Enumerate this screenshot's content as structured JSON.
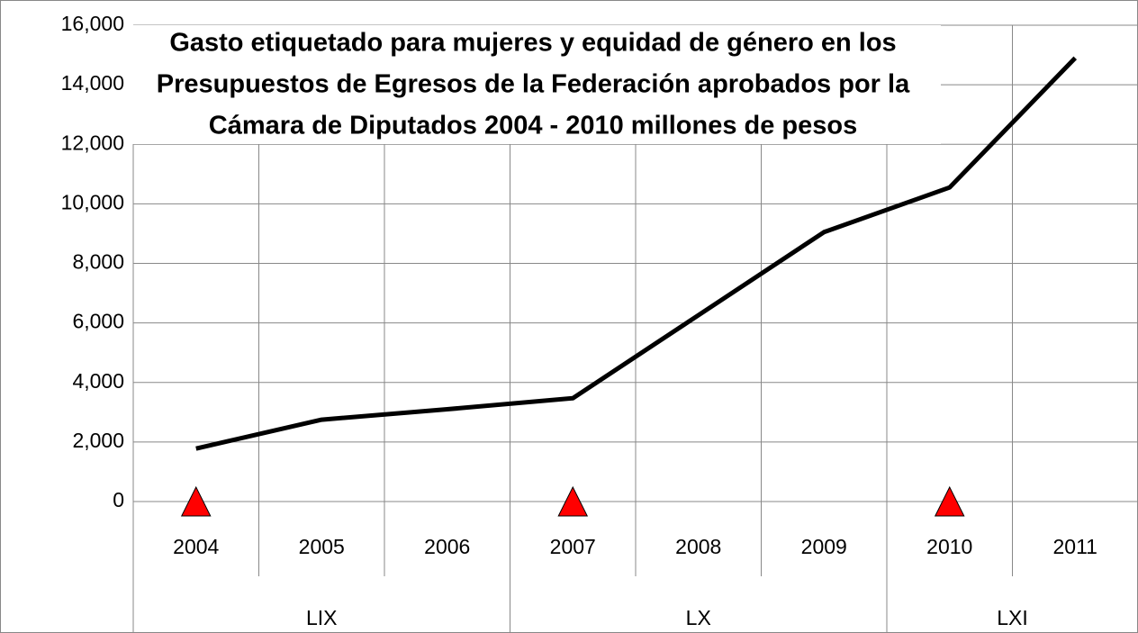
{
  "chart_data": {
    "type": "line",
    "title": [
      "Gasto etiquetado para mujeres y equidad de género en los",
      "Presupuestos de Egresos de la Federación aprobados por la",
      "Cámara de Diputados 2004 - 2010 millones de pesos"
    ],
    "categories": [
      "2004",
      "2005",
      "2006",
      "2007",
      "2008",
      "2009",
      "2010",
      "2011"
    ],
    "groups": [
      {
        "label": "LIX",
        "span": 3
      },
      {
        "label": "LX",
        "span": 3
      },
      {
        "label": "LXI",
        "span": 2
      }
    ],
    "series": [
      {
        "color": "#000000",
        "marker": "none",
        "values": [
          1780,
          2750,
          3100,
          3470,
          6260,
          9050,
          10550,
          14900
        ]
      },
      {
        "color": "#ff0000",
        "marker": "triangle",
        "values": [
          0,
          null,
          null,
          0,
          null,
          null,
          0,
          null
        ]
      }
    ],
    "ylim": [
      0,
      16000
    ],
    "yticks": [
      0,
      {
        "value": 2000,
        "label": "2,000"
      },
      {
        "value": 4000,
        "label": "4,000"
      },
      {
        "value": 6000,
        "label": "6,000"
      },
      {
        "value": 8000,
        "label": "8,000"
      },
      {
        "value": 10000,
        "label": "10,000"
      },
      {
        "value": 12000,
        "label": "12,000"
      },
      {
        "value": 14000,
        "label": "14,000"
      },
      {
        "value": 16000,
        "label": "16,000"
      }
    ],
    "grid": true
  }
}
